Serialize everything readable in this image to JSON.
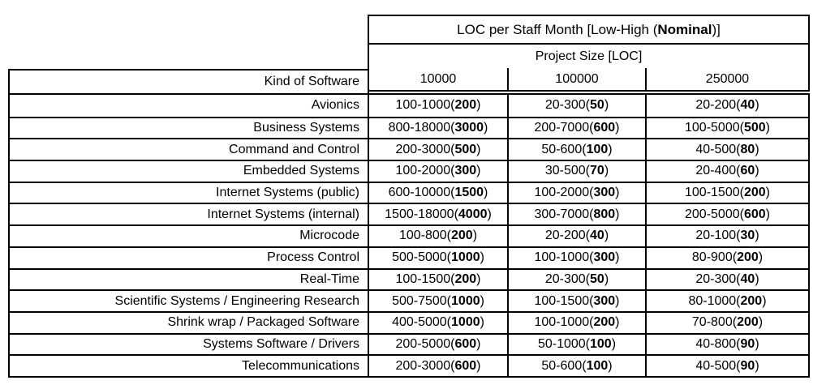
{
  "colors": {
    "background": "#ffffff",
    "text": "#000000",
    "border": "#000000"
  },
  "chart_data": {
    "type": "table",
    "title": "LOC per Staff Month [Low-High (Nominal)]",
    "title_parts": {
      "prefix": "LOC per Staff Month [Low-High (",
      "bold": "Nominal",
      "suffix": ")]"
    },
    "column_group_label": "Project Size [LOC]",
    "row_header_label": "Kind of Software",
    "project_sizes": [
      "10000",
      "100000",
      "250000"
    ],
    "rows": [
      {
        "kind": "Avionics",
        "cells": [
          {
            "range": "100-1000",
            "nominal": "200"
          },
          {
            "range": "20-300",
            "nominal": "50"
          },
          {
            "range": "20-200",
            "nominal": "40"
          }
        ]
      },
      {
        "kind": "Business Systems",
        "cells": [
          {
            "range": "800-18000",
            "nominal": "3000"
          },
          {
            "range": "200-7000",
            "nominal": "600"
          },
          {
            "range": "100-5000",
            "nominal": "500"
          }
        ]
      },
      {
        "kind": "Command and Control",
        "cells": [
          {
            "range": "200-3000",
            "nominal": "500"
          },
          {
            "range": "50-600",
            "nominal": "100"
          },
          {
            "range": "40-500",
            "nominal": "80"
          }
        ]
      },
      {
        "kind": "Embedded Systems",
        "cells": [
          {
            "range": "100-2000",
            "nominal": "300"
          },
          {
            "range": "30-500",
            "nominal": "70"
          },
          {
            "range": "20-400",
            "nominal": "60"
          }
        ]
      },
      {
        "kind": "Internet Systems (public)",
        "cells": [
          {
            "range": "600-10000",
            "nominal": "1500"
          },
          {
            "range": "100-2000",
            "nominal": "300"
          },
          {
            "range": "100-1500",
            "nominal": "200"
          }
        ]
      },
      {
        "kind": "Internet Systems (internal)",
        "cells": [
          {
            "range": "1500-18000",
            "nominal": "4000"
          },
          {
            "range": "300-7000",
            "nominal": "800"
          },
          {
            "range": "200-5000",
            "nominal": "600"
          }
        ]
      },
      {
        "kind": "Microcode",
        "cells": [
          {
            "range": "100-800",
            "nominal": "200"
          },
          {
            "range": "20-200",
            "nominal": "40"
          },
          {
            "range": "20-100",
            "nominal": "30"
          }
        ]
      },
      {
        "kind": "Process Control",
        "cells": [
          {
            "range": "500-5000",
            "nominal": "1000"
          },
          {
            "range": "100-1000",
            "nominal": "300"
          },
          {
            "range": "80-900",
            "nominal": "200"
          }
        ]
      },
      {
        "kind": "Real-Time",
        "cells": [
          {
            "range": "100-1500",
            "nominal": "200"
          },
          {
            "range": "20-300",
            "nominal": "50"
          },
          {
            "range": "20-300",
            "nominal": "40"
          }
        ]
      },
      {
        "kind": "Scientific Systems / Engineering Research",
        "cells": [
          {
            "range": "500-7500",
            "nominal": "1000"
          },
          {
            "range": "100-1500",
            "nominal": "300"
          },
          {
            "range": "80-1000",
            "nominal": "200"
          }
        ]
      },
      {
        "kind": "Shrink wrap / Packaged Software",
        "cells": [
          {
            "range": "400-5000",
            "nominal": "1000"
          },
          {
            "range": "100-1000",
            "nominal": "200"
          },
          {
            "range": "70-800",
            "nominal": "200"
          }
        ]
      },
      {
        "kind": "Systems Software / Drivers",
        "cells": [
          {
            "range": "200-5000",
            "nominal": "600"
          },
          {
            "range": "50-1000",
            "nominal": "100"
          },
          {
            "range": "40-800",
            "nominal": "90"
          }
        ]
      },
      {
        "kind": "Telecommunications",
        "cells": [
          {
            "range": "200-3000",
            "nominal": "600"
          },
          {
            "range": "50-600",
            "nominal": "100"
          },
          {
            "range": "40-500",
            "nominal": "90"
          }
        ]
      }
    ]
  }
}
